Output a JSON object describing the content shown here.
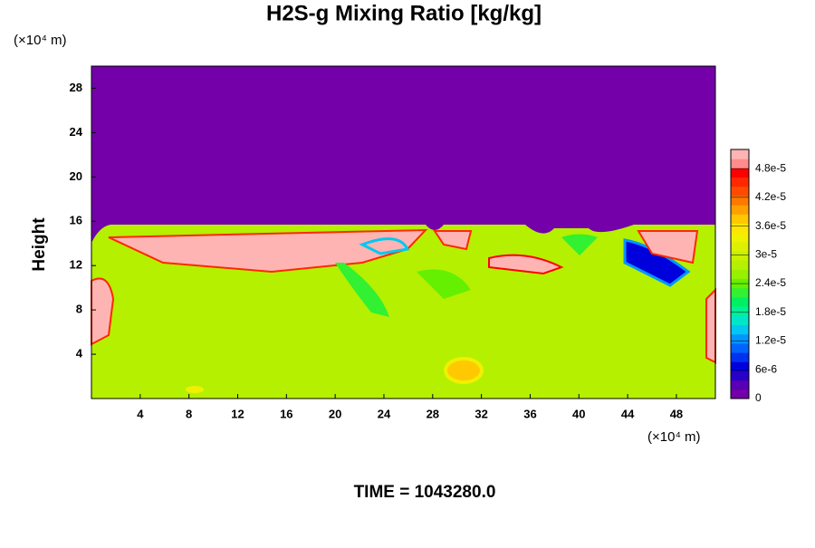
{
  "chart_data": {
    "type": "contour",
    "title": "H2S-g Mixing Ratio [kg/kg]",
    "ylabel": "Height",
    "xunit": "(×10⁴ m)",
    "yunit": "(×10⁴ m)",
    "footer": "TIME = 1043280.0",
    "xlim": [
      0,
      51.2
    ],
    "ylim": [
      0,
      30
    ],
    "xticks": [
      4,
      8,
      12,
      16,
      20,
      24,
      28,
      32,
      36,
      40,
      44,
      48
    ],
    "yticks": [
      4,
      8,
      12,
      16,
      20,
      24,
      28
    ],
    "clim": [
      0,
      5.2e-05
    ],
    "cticks": [
      0,
      {
        "value": 6e-06,
        "label": "6e-6"
      },
      {
        "value": 1.2e-05,
        "label": "1.2e-5"
      },
      {
        "value": 1.8e-05,
        "label": "1.8e-5"
      },
      {
        "value": 2.4e-05,
        "label": "2.4e-5"
      },
      {
        "value": 3e-05,
        "label": "3e-5"
      },
      {
        "value": 3.6e-05,
        "label": "3.6e-5"
      },
      {
        "value": 4.2e-05,
        "label": "4.2e-5"
      },
      {
        "value": 4.8e-05,
        "label": "4.8e-5"
      }
    ],
    "colormap": [
      "#7300a8",
      "#5a00b4",
      "#2800c8",
      "#0000dc",
      "#0032f0",
      "#0064ff",
      "#0096ff",
      "#00c8f0",
      "#00e6c8",
      "#00f096",
      "#00f064",
      "#32f032",
      "#64f000",
      "#96f000",
      "#b4f000",
      "#c8f000",
      "#dcf000",
      "#f0f000",
      "#ffe600",
      "#ffc800",
      "#ffa000",
      "#ff7800",
      "#ff4b00",
      "#ff2800",
      "#ff0000",
      "#ff8c8c",
      "#ffb4b4"
    ]
  }
}
